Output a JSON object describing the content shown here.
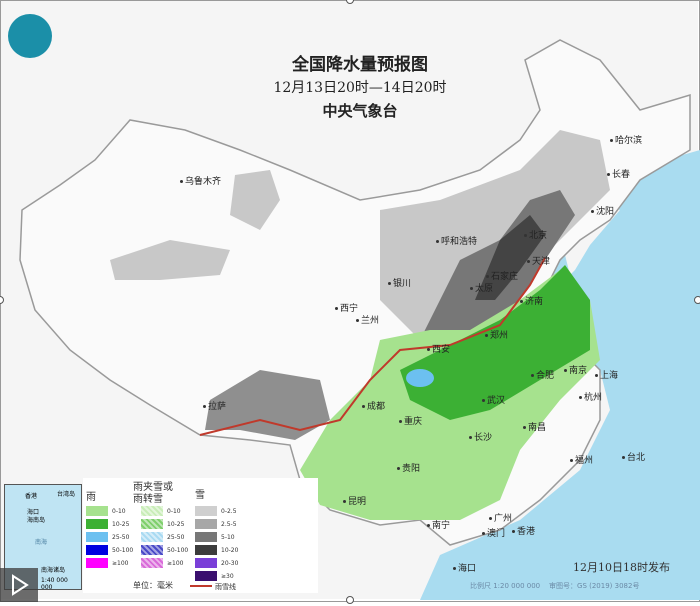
{
  "map": {
    "title": "全国降水量预报图",
    "period": "12月13日20时—14日20时",
    "issuer": "中央气象台",
    "issued": "12月10日18时发布",
    "scale": "比例尺 1:20 000 000",
    "map_number": "审图号：GS (2019) 3082号",
    "colors": {
      "ocean": "#a9dcf0",
      "land": "#f4f4f4",
      "rain_light": "#a6e28e",
      "rain_moderate": "#3cb034",
      "snow_light": "#c8c8c8",
      "snow_heavy": "#555555",
      "rain_snow_line": "#c0392b"
    }
  },
  "cities": [
    "乌鲁木齐",
    "哈尔滨",
    "长春",
    "沈阳",
    "呼和浩特",
    "北京",
    "天津",
    "石家庄",
    "太原",
    "济南",
    "银川",
    "西宁",
    "兰州",
    "郑州",
    "西安",
    "合肥",
    "南京",
    "上海",
    "武汉",
    "杭州",
    "成都",
    "重庆",
    "长沙",
    "南昌",
    "福州",
    "台北",
    "贵阳",
    "昆明",
    "南宁",
    "广州",
    "香港",
    "澳门",
    "海口",
    "拉萨"
  ],
  "inset": {
    "labels": [
      "香港",
      "台湾岛",
      "海口",
      "海南岛",
      "南海",
      "南海诸岛"
    ],
    "scale": "1:40 000 000"
  },
  "legend": {
    "rain": {
      "title": "雨",
      "items": [
        {
          "label": "0-10",
          "color": "#a6e28e"
        },
        {
          "label": "10-25",
          "color": "#3cb034"
        },
        {
          "label": "25-50",
          "color": "#6cc0f0"
        },
        {
          "label": "50-100",
          "color": "#0000e0"
        },
        {
          "label": "≥100",
          "color": "#ff00ff"
        }
      ]
    },
    "mixed": {
      "title": "雨夹雪或雨转雪",
      "items": [
        {
          "label": "0-10",
          "color": "#c9edb8"
        },
        {
          "label": "10-25",
          "color": "#7fcf6c"
        },
        {
          "label": "25-50",
          "color": "#a9daf2"
        },
        {
          "label": "50-100",
          "color": "#4a4ac8"
        },
        {
          "label": "≥100",
          "color": "#d96ad9"
        }
      ]
    },
    "snow": {
      "title": "雪",
      "items": [
        {
          "label": "0-2.5",
          "color": "#cfcfcf"
        },
        {
          "label": "2.5-5",
          "color": "#a7a7a7"
        },
        {
          "label": "5-10",
          "color": "#777777"
        },
        {
          "label": "10-20",
          "color": "#3c3c3c"
        },
        {
          "label": "20-30",
          "color": "#7a3fd8"
        },
        {
          "label": "≥30",
          "color": "#3a0f6e"
        }
      ]
    },
    "unit": "单位：毫米",
    "line_label": "雨雪线"
  }
}
